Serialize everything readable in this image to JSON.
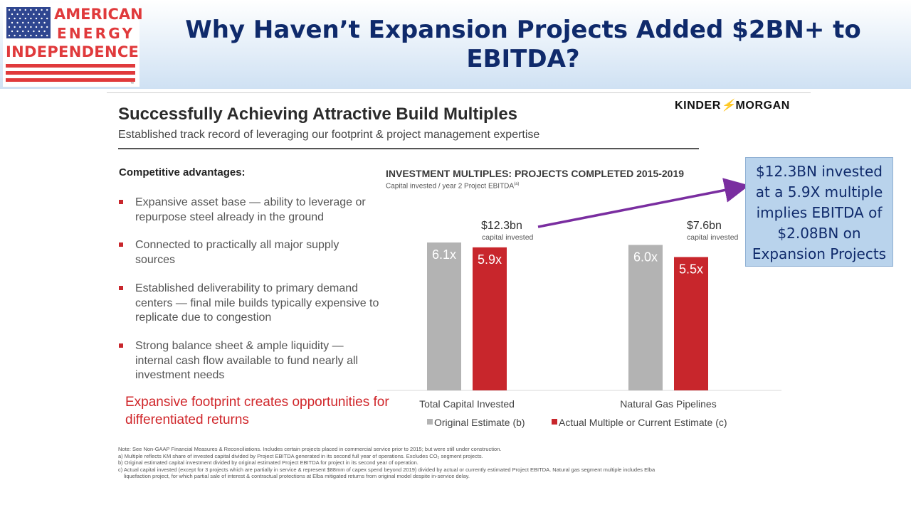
{
  "header": {
    "logo": {
      "line1": "AMERICAN",
      "line2": "ENERGY",
      "line3": "INDEPENDENCE",
      "tm": "™"
    },
    "title_line1": "Why Haven’t Expansion Projects Added $2BN+ to",
    "title_line2": "EBITDA?"
  },
  "slide": {
    "title": "Successfully Achieving Attractive Build Multiples",
    "subtitle": "Established track record of leveraging our footprint & project management expertise",
    "brand_logo": {
      "left": "KINDER",
      "right": "MORGAN"
    },
    "advantages_heading": "Competitive advantages:",
    "bullets": [
      "Expansive asset base — ability to leverage or repurpose steel already in the ground",
      "Connected to practically all major supply sources",
      "Established deliverability to primary demand centers — final mile builds typically expensive to replicate due to congestion",
      "Strong balance sheet & ample liquidity — internal cash flow available to fund nearly all investment needs"
    ],
    "red_callout": "Expansive footprint creates opportunities for differentiated returns",
    "footnotes": {
      "note": "Note:  See Non-GAAP Financial Measures & Reconciliations. Includes certain projects placed in commercial service prior to 2015; but were still under construction.",
      "a": "a)   Multiple reflects KM share of invested capital divided by Project EBITDA generated in its second full year of operations. Excludes CO₂ segment projects.",
      "b": "b)   Original estimated capital investment divided by original estimated Project EBITDA for project in its second year of operation.",
      "c1": "c)   Actual capital invested (except for 3 projects which are partially in service & represent $88mm of capex spend beyond 2019) divided by actual or currently estimated Project EBITDA. Natural gas segment multiple includes Elba",
      "c2": "liquefaction project, for which partial sale of interest & contractual protections at Elba mitigated returns from original model despite in-service delay."
    }
  },
  "overlay": {
    "lines": [
      "$12.3BN invested",
      "at a 5.9X multiple",
      "implies EBITDA of",
      "$2.08BN on",
      "Expansion Projects"
    ],
    "arrow_color": "#7a2ea0"
  },
  "chart_data": {
    "type": "bar",
    "title": "INVESTMENT MULTIPLES:  PROJECTS COMPLETED 2015-2019",
    "subtitle": "Capital invested / year 2 Project EBITDA",
    "subtitle_sup": "(a)",
    "categories": [
      "Total Capital Invested",
      "Natural Gas Pipelines"
    ],
    "group_labels": [
      {
        "value": "$12.3bn",
        "caption": "capital invested"
      },
      {
        "value": "$7.6bn",
        "caption": "capital invested"
      }
    ],
    "series": [
      {
        "name": "Original Estimate (b)",
        "color": "#b3b3b3",
        "values": [
          6.1,
          6.0
        ],
        "labels": [
          "6.1x",
          "6.0x"
        ]
      },
      {
        "name": "Actual Multiple or Current Estimate (c)",
        "color": "#c8262c",
        "values": [
          5.9,
          5.5
        ],
        "labels": [
          "5.9x",
          "5.5x"
        ]
      }
    ],
    "ylim": [
      0,
      6.1
    ],
    "grid": false,
    "legend": "bottom"
  }
}
